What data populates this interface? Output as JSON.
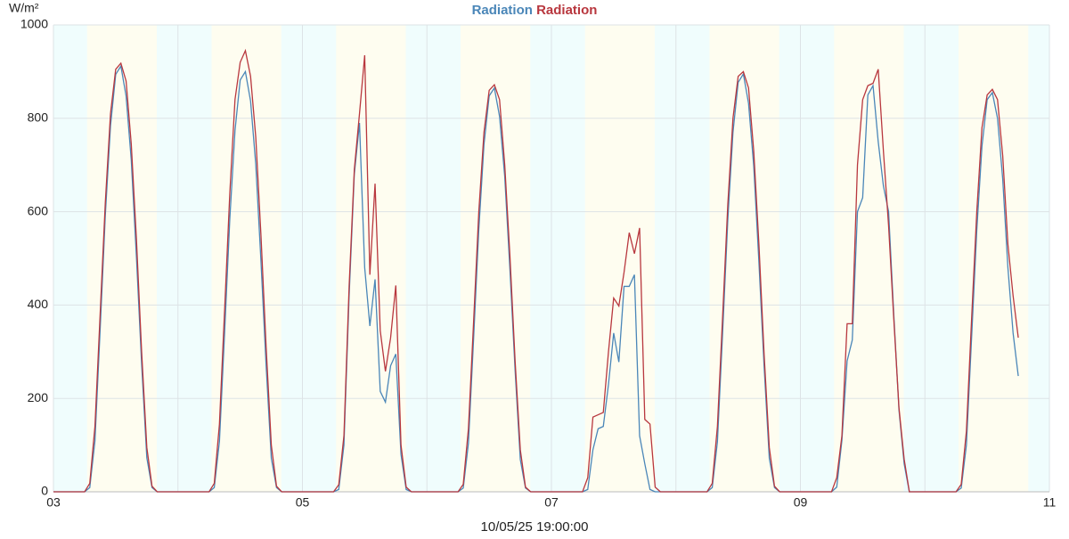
{
  "chart_data": {
    "type": "line",
    "y_unit_label": "W/m²",
    "footer": "10/05/25 19:00:00",
    "xlim": [
      3,
      11
    ],
    "xticks": [
      {
        "value": 3,
        "label": "03"
      },
      {
        "value": 5,
        "label": "05"
      },
      {
        "value": 7,
        "label": "07"
      },
      {
        "value": 9,
        "label": "09"
      },
      {
        "value": 11,
        "label": "11"
      }
    ],
    "x_minor_grid": [
      4,
      6,
      8,
      10
    ],
    "ylim": [
      0,
      1000
    ],
    "yticks": [
      0,
      200,
      400,
      600,
      800,
      1000
    ],
    "grid": true,
    "background_color": "#f0fdfd",
    "shaded_periods_color": "#fefdf0",
    "shaded_periods": [
      [
        3.27,
        3.83
      ],
      [
        4.27,
        4.83
      ],
      [
        5.27,
        5.83
      ],
      [
        6.27,
        6.83
      ],
      [
        7.27,
        7.83
      ],
      [
        8.27,
        8.83
      ],
      [
        9.27,
        9.83
      ],
      [
        10.27,
        10.83
      ]
    ],
    "x": [
      3,
      3.25,
      3.2917,
      3.3333,
      3.375,
      3.4167,
      3.4583,
      3.5,
      3.5417,
      3.5833,
      3.625,
      3.6667,
      3.7083,
      3.75,
      3.7917,
      3.8333,
      3.875,
      4.25,
      4.2917,
      4.3333,
      4.375,
      4.4167,
      4.4583,
      4.5,
      4.5417,
      4.5833,
      4.625,
      4.6667,
      4.7083,
      4.75,
      4.7917,
      4.8333,
      4.875,
      5.25,
      5.2917,
      5.3333,
      5.375,
      5.4167,
      5.4583,
      5.5,
      5.5417,
      5.5833,
      5.625,
      5.6667,
      5.7083,
      5.75,
      5.7917,
      5.8333,
      5.875,
      6.25,
      6.2917,
      6.3333,
      6.375,
      6.4167,
      6.4583,
      6.5,
      6.5417,
      6.5833,
      6.625,
      6.6667,
      6.7083,
      6.75,
      6.7917,
      6.8333,
      6.875,
      7.25,
      7.2917,
      7.3333,
      7.375,
      7.4167,
      7.4583,
      7.5,
      7.5417,
      7.5833,
      7.625,
      7.6667,
      7.7083,
      7.75,
      7.7917,
      7.8333,
      7.875,
      8.25,
      8.2917,
      8.3333,
      8.375,
      8.4167,
      8.4583,
      8.5,
      8.5417,
      8.5833,
      8.625,
      8.6667,
      8.7083,
      8.75,
      8.7917,
      8.8333,
      8.875,
      9.25,
      9.2917,
      9.3333,
      9.375,
      9.4167,
      9.4583,
      9.5,
      9.5417,
      9.5833,
      9.625,
      9.6667,
      9.7083,
      9.75,
      9.7917,
      9.8333,
      9.875,
      10.25,
      10.2917,
      10.3333,
      10.375,
      10.4167,
      10.4583,
      10.5,
      10.5417,
      10.5833,
      10.625,
      10.6667,
      10.7083,
      10.75
    ],
    "series": [
      {
        "name": "Radiation",
        "color": "#4a86b8",
        "values": [
          0,
          0,
          9,
          109,
          347,
          593,
          784,
          894,
          912,
          848,
          711,
          502,
          274,
          73,
          9,
          0,
          0,
          0,
          9,
          108,
          342,
          585,
          774,
          882,
          900,
          837,
          702,
          495,
          270,
          72,
          9,
          0,
          0,
          0,
          5,
          100,
          420,
          680,
          790,
          480,
          355,
          455,
          215,
          192,
          270,
          295,
          80,
          5,
          0,
          0,
          8,
          104,
          329,
          562,
          744,
          848,
          865,
          804,
          675,
          476,
          260,
          69,
          8,
          0,
          0,
          0,
          5,
          90,
          135,
          140,
          230,
          340,
          278,
          440,
          440,
          465,
          120,
          60,
          5,
          0,
          0,
          0,
          9,
          107,
          340,
          582,
          770,
          877,
          895,
          832,
          698,
          492,
          269,
          72,
          9,
          0,
          0,
          0,
          10,
          110,
          280,
          325,
          600,
          630,
          850,
          870,
          750,
          655,
          600,
          380,
          175,
          60,
          0,
          0,
          8,
          100,
          330,
          560,
          740,
          840,
          855,
          800,
          670,
          480,
          340,
          248
        ]
      },
      {
        "name": "Radiation",
        "color": "#b8373e",
        "values": [
          0,
          0,
          18,
          140,
          380,
          620,
          810,
          905,
          918,
          880,
          745,
          540,
          300,
          95,
          12,
          0,
          0,
          0,
          18,
          145,
          390,
          640,
          840,
          920,
          945,
          890,
          760,
          550,
          310,
          100,
          12,
          0,
          0,
          0,
          15,
          120,
          440,
          690,
          810,
          935,
          465,
          660,
          345,
          258,
          330,
          442,
          100,
          10,
          0,
          0,
          16,
          135,
          365,
          600,
          770,
          860,
          872,
          840,
          700,
          505,
          280,
          90,
          10,
          0,
          0,
          0,
          30,
          160,
          165,
          170,
          300,
          415,
          398,
          470,
          555,
          510,
          565,
          155,
          145,
          10,
          0,
          0,
          18,
          140,
          375,
          615,
          800,
          890,
          900,
          865,
          730,
          530,
          295,
          95,
          12,
          0,
          0,
          0,
          30,
          120,
          360,
          360,
          700,
          840,
          870,
          875,
          905,
          730,
          570,
          370,
          180,
          70,
          0,
          0,
          16,
          130,
          370,
          600,
          780,
          850,
          862,
          840,
          720,
          530,
          420,
          330
        ]
      }
    ]
  }
}
